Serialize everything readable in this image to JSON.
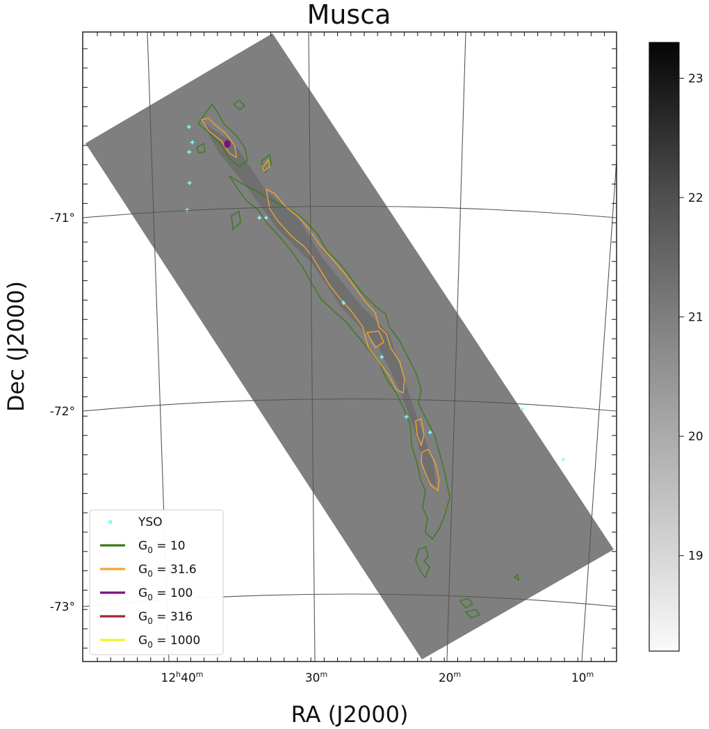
{
  "chart_data": {
    "type": "map",
    "title": "Musca",
    "xlabel": "RA (J2000)",
    "ylabel": "Dec (J2000)",
    "x_ticks": [
      {
        "h": "12",
        "hsup": "h",
        "m": "40",
        "msup": "m"
      },
      {
        "h": "",
        "hsup": "",
        "m": "30",
        "msup": "m"
      },
      {
        "h": "",
        "hsup": "",
        "m": "20",
        "msup": "m"
      },
      {
        "h": "",
        "hsup": "",
        "m": "10",
        "msup": "m"
      }
    ],
    "y_ticks": [
      "-71°",
      "-72°",
      "-73°"
    ],
    "colorbar": {
      "ticks": [
        19,
        20,
        21,
        22,
        23
      ],
      "range": [
        18.2,
        23.3
      ],
      "colormap": "gray_r"
    },
    "grid": true,
    "image_background": "#7f7f7f",
    "legend": {
      "location": "lower left",
      "entries": [
        {
          "label": "YSO",
          "marker": "point",
          "color": "#7fffff"
        },
        {
          "label": "G",
          "sub": "0",
          "value": " = 10",
          "color": "#3a7a1c"
        },
        {
          "label": "G",
          "sub": "0",
          "value": " = 31.6",
          "color": "#f3a431"
        },
        {
          "label": "G",
          "sub": "0",
          "value": " = 100",
          "color": "#7d0f83"
        },
        {
          "label": "G",
          "sub": "0",
          "value": " = 316",
          "color": "#9b2a2a"
        },
        {
          "label": "G",
          "sub": "0",
          "value": " = 1000",
          "color": "#f7f127"
        }
      ]
    },
    "yso_positions_ra_dec": [
      [
        12.6,
        -70.53
      ],
      [
        12.597,
        -70.61
      ],
      [
        12.599,
        -70.66
      ],
      [
        12.598,
        -70.82
      ],
      [
        12.599,
        -70.96
      ],
      [
        12.545,
        -71.0
      ],
      [
        12.54,
        -71.0
      ],
      [
        12.48,
        -71.44
      ],
      [
        12.45,
        -71.72
      ],
      [
        12.43,
        -72.03
      ],
      [
        12.412,
        -72.11
      ],
      [
        12.344,
        -71.99
      ],
      [
        12.312,
        -72.25
      ]
    ]
  }
}
